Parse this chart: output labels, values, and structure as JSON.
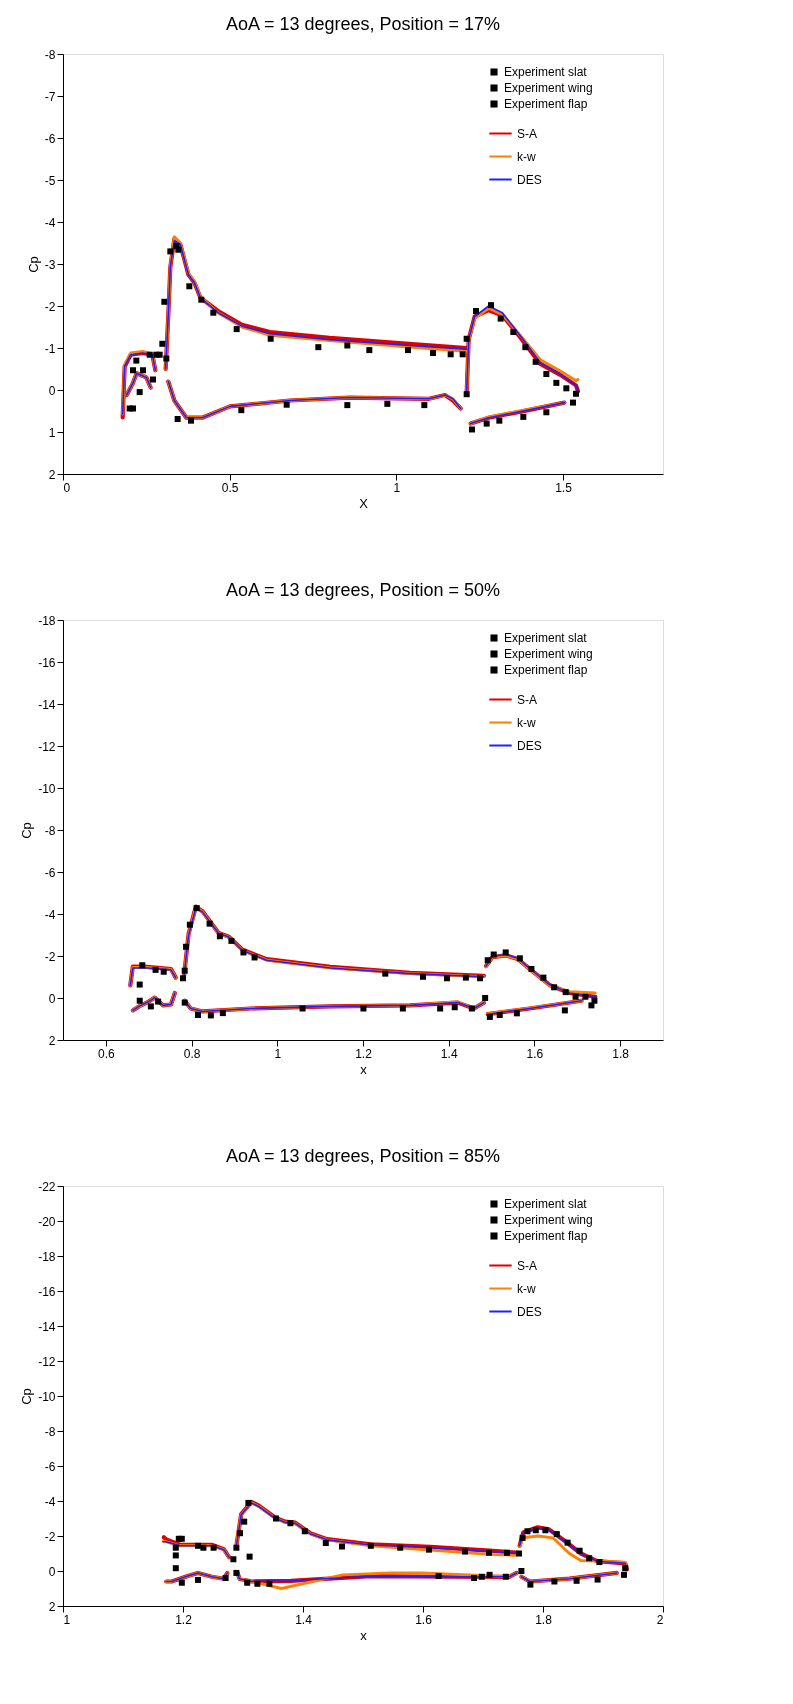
{
  "chart_data": [
    {
      "type": "line",
      "title": "AoA = 13 degrees, Position = 17%",
      "xlabel": "X",
      "ylabel": "Cp",
      "xlim": [
        0,
        1.8
      ],
      "xticks": [
        0,
        0.5,
        1,
        1.5
      ],
      "ylim": [
        2,
        -8
      ],
      "yticks": [
        2,
        1,
        0,
        -1,
        -2,
        -3,
        -4,
        -5,
        -6,
        -7,
        -8
      ],
      "grid": false,
      "legend": "top right",
      "line_style": "solid",
      "series": [
        {
          "name": "Experiment slat",
          "type": "scatter",
          "marker": "square",
          "color": "#000000",
          "x": [
            0.2,
            0.21,
            0.21,
            0.22,
            0.23,
            0.24,
            0.26,
            0.27,
            0.28,
            0.29
          ],
          "values": [
            0.44,
            0.44,
            -0.47,
            -0.7,
            0.05,
            -0.47,
            -0.84,
            -0.25,
            -0.84,
            -0.84
          ]
        },
        {
          "name": "Experiment wing",
          "type": "scatter",
          "marker": "square",
          "color": "#000000",
          "x": [
            0.298,
            0.304,
            0.31,
            0.322,
            0.34,
            0.346,
            0.379,
            0.415,
            0.451,
            0.521,
            0.623,
            0.766,
            0.853,
            0.919,
            1.035,
            1.11,
            1.163,
            1.199,
            0.344,
            0.384,
            0.535,
            0.671,
            0.853,
            0.973,
            1.084
          ],
          "values": [
            -1.1,
            -2.1,
            -0.75,
            -3.3,
            -3.43,
            -3.34,
            -2.47,
            -2.15,
            -1.84,
            -1.45,
            -1.22,
            -1.02,
            -1.06,
            -0.95,
            -0.95,
            -0.88,
            -0.85,
            -0.85,
            0.69,
            0.73,
            0.48,
            0.35,
            0.36,
            0.33,
            0.36
          ]
        },
        {
          "name": "Experiment flap",
          "type": "scatter",
          "marker": "square",
          "color": "#000000",
          "x": [
            1.211,
            1.211,
            1.239,
            1.284,
            1.313,
            1.351,
            1.387,
            1.418,
            1.45,
            1.48,
            1.51,
            1.539,
            1.53,
            1.45,
            1.381,
            1.309,
            1.271,
            1.227
          ],
          "values": [
            -1.22,
            0.1,
            -1.88,
            -2.02,
            -1.7,
            -1.38,
            -1.02,
            -0.67,
            -0.38,
            -0.17,
            -0.04,
            0.09,
            0.3,
            0.53,
            0.64,
            0.73,
            0.8,
            0.94
          ]
        },
        {
          "name": "S-A",
          "color": "#e00000",
          "x": [
            0.179,
            0.185,
            0.203,
            0.239,
            0.268,
            0.277
          ],
          "values": [
            0.65,
            -0.56,
            -0.84,
            -0.88,
            -0.84,
            -0.47
          ]
        },
        {
          "color": "#e00000",
          "x": [
            0.191,
            0.209,
            0.221,
            0.25,
            0.263
          ],
          "values": [
            0.12,
            -0.15,
            -0.4,
            -0.3,
            -0.06
          ]
        },
        {
          "color": "#e00000",
          "x": [
            0.308,
            0.316,
            0.322,
            0.334,
            0.352,
            0.376,
            0.394,
            0.412,
            0.465,
            0.537,
            0.621,
            0.8,
            1.038,
            1.211
          ],
          "values": [
            -0.5,
            -1.8,
            -2.93,
            -3.6,
            -3.47,
            -2.75,
            -2.56,
            -2.2,
            -1.88,
            -1.55,
            -1.38,
            -1.24,
            -1.1,
            -1.0
          ]
        },
        {
          "color": "#e00000",
          "x": [
            0.316,
            0.334,
            0.37,
            0.418,
            0.501,
            0.68,
            0.859,
            1.098,
            1.146,
            1.17,
            1.193
          ],
          "values": [
            -0.2,
            0.25,
            0.66,
            0.66,
            0.39,
            0.25,
            0.18,
            0.21,
            0.12,
            0.25,
            0.44
          ]
        },
        {
          "color": "#e00000",
          "x": [
            1.211,
            1.217,
            1.235,
            1.277,
            1.318,
            1.372,
            1.432,
            1.492,
            1.539,
            1.545
          ],
          "values": [
            0.07,
            -1.2,
            -1.75,
            -1.9,
            -1.78,
            -1.25,
            -0.62,
            -0.36,
            -0.11,
            0.03
          ]
        },
        {
          "color": "#e00000",
          "x": [
            1.223,
            1.277,
            1.396,
            1.504
          ],
          "values": [
            0.8,
            0.66,
            0.48,
            0.3
          ]
        },
        {
          "name": "k-w",
          "color": "#ff8000",
          "x": [
            0.179,
            0.185,
            0.203,
            0.239,
            0.268,
            0.277
          ],
          "values": [
            0.57,
            -0.6,
            -0.88,
            -0.92,
            -0.86,
            -0.47
          ]
        },
        {
          "color": "#ff8000",
          "x": [
            0.191,
            0.209,
            0.221,
            0.25,
            0.263
          ],
          "values": [
            0.12,
            -0.15,
            -0.4,
            -0.3,
            -0.06
          ]
        },
        {
          "color": "#ff8000",
          "x": [
            0.308,
            0.316,
            0.322,
            0.334,
            0.352,
            0.376,
            0.394,
            0.412,
            0.465,
            0.537,
            0.621,
            0.8,
            1.038,
            1.211
          ],
          "values": [
            -0.5,
            -1.8,
            -2.95,
            -3.65,
            -3.5,
            -2.78,
            -2.58,
            -2.22,
            -1.84,
            -1.5,
            -1.3,
            -1.18,
            -1.02,
            -0.92
          ]
        },
        {
          "color": "#ff8000",
          "x": [
            0.316,
            0.334,
            0.37,
            0.418,
            0.501,
            0.68,
            0.859,
            1.098,
            1.146,
            1.17,
            1.193
          ],
          "values": [
            -0.2,
            0.25,
            0.66,
            0.66,
            0.39,
            0.25,
            0.18,
            0.21,
            0.12,
            0.21,
            0.44
          ]
        },
        {
          "color": "#ff8000",
          "x": [
            1.211,
            1.217,
            1.235,
            1.277,
            1.318,
            1.372,
            1.432,
            1.492,
            1.539,
            1.545
          ],
          "values": [
            0.07,
            -1.18,
            -1.7,
            -1.95,
            -1.8,
            -1.3,
            -0.72,
            -0.45,
            -0.22,
            -0.25
          ]
        },
        {
          "color": "#ff8000",
          "x": [
            1.223,
            1.277,
            1.396,
            1.504
          ],
          "values": [
            0.8,
            0.64,
            0.46,
            0.3
          ]
        },
        {
          "name": "DES",
          "color": "#2020ff",
          "x": [
            0.179,
            0.185,
            0.203,
            0.239,
            0.268,
            0.277
          ],
          "values": [
            0.57,
            -0.56,
            -0.84,
            -0.88,
            -0.84,
            -0.47
          ]
        },
        {
          "color": "#2020ff",
          "x": [
            0.191,
            0.209,
            0.221,
            0.25,
            0.263
          ],
          "values": [
            0.12,
            -0.15,
            -0.4,
            -0.3,
            -0.06
          ]
        },
        {
          "color": "#2020ff",
          "x": [
            0.308,
            0.316,
            0.322,
            0.334,
            0.352,
            0.376,
            0.394,
            0.412,
            0.465,
            0.537,
            0.621,
            0.8,
            1.038,
            1.211
          ],
          "values": [
            -0.5,
            -1.8,
            -2.93,
            -3.55,
            -3.47,
            -2.75,
            -2.56,
            -2.2,
            -1.84,
            -1.52,
            -1.34,
            -1.2,
            -1.06,
            -0.97
          ]
        },
        {
          "color": "#2020ff",
          "x": [
            0.316,
            0.334,
            0.37,
            0.418,
            0.501,
            0.68,
            0.859,
            1.098,
            1.146,
            1.17,
            1.193
          ],
          "values": [
            -0.2,
            0.25,
            0.66,
            0.66,
            0.39,
            0.25,
            0.18,
            0.21,
            0.12,
            0.21,
            0.44
          ]
        },
        {
          "color": "#2020ff",
          "x": [
            1.211,
            1.217,
            1.235,
            1.277,
            1.318,
            1.372,
            1.432,
            1.492,
            1.539,
            1.545
          ],
          "values": [
            0.07,
            -1.2,
            -1.75,
            -2.0,
            -1.84,
            -1.29,
            -0.65,
            -0.38,
            -0.11,
            0.03
          ]
        },
        {
          "color": "#2020ff",
          "x": [
            1.223,
            1.277,
            1.396,
            1.504
          ],
          "values": [
            0.8,
            0.66,
            0.48,
            0.3
          ]
        }
      ]
    },
    {
      "type": "line",
      "title": "AoA = 13 degrees, Position = 50%",
      "xlabel": "x",
      "ylabel": "Cp",
      "xlim": [
        0.5,
        1.9
      ],
      "xticks": [
        0.6,
        0.8,
        1,
        1.2,
        1.4,
        1.6,
        1.8
      ],
      "ylim": [
        2,
        -18
      ],
      "yticks": [
        2,
        0,
        -2,
        -4,
        -6,
        -8,
        -10,
        -12,
        -14,
        -16,
        -18
      ],
      "grid": false,
      "legend": "top right",
      "line_style": "solid",
      "series": [
        {
          "name": "Experiment slat",
          "type": "scatter",
          "marker": "square",
          "color": "#000000",
          "x": [
            0.679,
            0.679,
            0.685,
            0.705,
            0.722,
            0.735,
            0.716
          ],
          "values": [
            -0.64,
            0.13,
            -1.56,
            0.4,
            0.17,
            -1.25,
            -1.34
          ]
        },
        {
          "name": "Experiment wing",
          "type": "scatter",
          "marker": "square",
          "color": "#000000",
          "x": [
            0.78,
            0.784,
            0.787,
            0.796,
            0.812,
            0.842,
            0.866,
            0.893,
            0.921,
            0.947,
            1.252,
            1.34,
            1.396,
            1.44,
            1.473,
            0.784,
            0.815,
            0.845,
            0.873,
            1.059,
            1.201,
            1.293,
            1.38,
            1.414,
            1.454
          ],
          "values": [
            -0.94,
            -1.3,
            -2.44,
            -3.49,
            -4.28,
            -3.54,
            -2.94,
            -2.72,
            -2.17,
            -1.93,
            -1.16,
            -1.01,
            -0.94,
            -0.97,
            -0.94,
            0.22,
            0.81,
            0.83,
            0.72,
            0.5,
            0.5,
            0.5,
            0.5,
            0.44,
            0.5
          ]
        },
        {
          "name": "Experiment flap",
          "type": "scatter",
          "marker": "square",
          "color": "#000000",
          "x": [
            1.485,
            1.491,
            1.505,
            1.533,
            1.566,
            1.593,
            1.621,
            1.646,
            1.673,
            1.696,
            1.719,
            1.74,
            1.733,
            1.671,
            1.559,
            1.519,
            1.496
          ],
          "values": [
            0,
            -1.8,
            -2.07,
            -2.17,
            -1.89,
            -1.38,
            -0.97,
            -0.51,
            -0.28,
            -0.06,
            -0.06,
            0.13,
            0.35,
            0.59,
            0.73,
            0.81,
            0.9
          ]
        },
        {
          "name": "S-A",
          "color": "#e00000",
          "x": [
            0.657,
            0.663,
            0.696,
            0.752,
            0.763
          ],
          "values": [
            -0.6,
            -1.5,
            -1.48,
            -1.38,
            -0.97
          ]
        },
        {
          "color": "#e00000",
          "x": [
            0.663,
            0.677,
            0.7,
            0.714,
            0.733,
            0.752,
            0.761
          ],
          "values": [
            0.59,
            0.4,
            0.17,
            -0.02,
            0.35,
            0.31,
            -0.24
          ]
        },
        {
          "color": "#e00000",
          "x": [
            0.782,
            0.793,
            0.81,
            0.826,
            0.863,
            0.887,
            0.919,
            0.975,
            1.124,
            1.31,
            1.482
          ],
          "values": [
            -0.97,
            -3.05,
            -4.35,
            -4.12,
            -3.1,
            -2.92,
            -2.3,
            -1.85,
            -1.48,
            -1.2,
            -1.05
          ]
        },
        {
          "color": "#e00000",
          "x": [
            0.784,
            0.798,
            0.826,
            0.938,
            1.124,
            1.31,
            1.421,
            1.459,
            1.482
          ],
          "values": [
            0.13,
            0.5,
            0.64,
            0.5,
            0.4,
            0.35,
            0.22,
            0.5,
            0.22
          ]
        },
        {
          "color": "#e00000",
          "x": [
            1.487,
            1.502,
            1.533,
            1.561,
            1.598,
            1.635,
            1.682,
            1.742
          ],
          "values": [
            -1.52,
            -1.95,
            -2.03,
            -1.86,
            -1.23,
            -0.62,
            -0.24,
            -0.06
          ]
        },
        {
          "color": "#e00000",
          "x": [
            1.491,
            1.589,
            1.71
          ],
          "values": [
            0.77,
            0.5,
            0.13
          ]
        },
        {
          "name": "k-w",
          "color": "#ff8000",
          "x": [
            0.657,
            0.663,
            0.696,
            0.752,
            0.763
          ],
          "values": [
            -0.6,
            -1.45,
            -1.45,
            -1.36,
            -0.97
          ]
        },
        {
          "color": "#ff8000",
          "x": [
            0.663,
            0.677,
            0.7,
            0.714,
            0.733,
            0.752,
            0.761
          ],
          "values": [
            0.59,
            0.4,
            0.17,
            -0.02,
            0.35,
            0.31,
            -0.24
          ]
        },
        {
          "color": "#ff8000",
          "x": [
            0.782,
            0.793,
            0.81,
            0.826,
            0.863,
            0.887,
            0.919,
            0.975,
            1.124,
            1.31,
            1.482
          ],
          "values": [
            -0.97,
            -3.02,
            -4.32,
            -4.1,
            -3.08,
            -2.9,
            -2.26,
            -1.8,
            -1.43,
            -1.16,
            -1.01
          ]
        },
        {
          "color": "#ff8000",
          "x": [
            0.784,
            0.798,
            0.826,
            0.938,
            1.124,
            1.31,
            1.421,
            1.459,
            1.482
          ],
          "values": [
            0.13,
            0.5,
            0.64,
            0.5,
            0.4,
            0.35,
            0.18,
            0.5,
            0.22
          ]
        },
        {
          "color": "#ff8000",
          "x": [
            1.487,
            1.502,
            1.533,
            1.561,
            1.598,
            1.635,
            1.682,
            1.742
          ],
          "values": [
            -1.5,
            -1.95,
            -2.02,
            -1.86,
            -1.22,
            -0.6,
            -0.3,
            -0.24
          ]
        },
        {
          "color": "#ff8000",
          "x": [
            1.491,
            1.589,
            1.71
          ],
          "values": [
            0.75,
            0.48,
            0.13
          ]
        },
        {
          "name": "DES",
          "color": "#2020ff",
          "x": [
            0.657,
            0.663,
            0.696,
            0.752,
            0.763
          ],
          "values": [
            -0.6,
            -1.43,
            -1.43,
            -1.34,
            -0.97
          ]
        },
        {
          "color": "#2020ff",
          "x": [
            0.663,
            0.677,
            0.7,
            0.714,
            0.733,
            0.752,
            0.761
          ],
          "values": [
            0.59,
            0.4,
            0.17,
            -0.02,
            0.35,
            0.31,
            -0.24
          ]
        },
        {
          "color": "#2020ff",
          "x": [
            0.782,
            0.793,
            0.81,
            0.826,
            0.863,
            0.887,
            0.919,
            0.975,
            1.124,
            1.31,
            1.482
          ],
          "values": [
            -0.97,
            -2.99,
            -4.28,
            -4.09,
            -3.08,
            -2.9,
            -2.26,
            -1.8,
            -1.43,
            -1.16,
            -1.01
          ]
        },
        {
          "color": "#2020ff",
          "x": [
            0.784,
            0.798,
            0.826,
            0.938,
            1.124,
            1.31,
            1.421,
            1.459,
            1.482
          ],
          "values": [
            0.13,
            0.5,
            0.64,
            0.5,
            0.4,
            0.35,
            0.22,
            0.5,
            0.22
          ]
        },
        {
          "color": "#2020ff",
          "x": [
            1.487,
            1.502,
            1.533,
            1.561,
            1.598,
            1.635,
            1.682,
            1.742
          ],
          "values": [
            -1.52,
            -1.98,
            -2.07,
            -1.89,
            -1.25,
            -0.64,
            -0.24,
            -0.06
          ]
        },
        {
          "color": "#2020ff",
          "x": [
            1.491,
            1.589,
            1.71
          ],
          "values": [
            0.77,
            0.5,
            0.13
          ]
        }
      ]
    },
    {
      "type": "line",
      "title": "AoA = 13 degrees, Position = 85%",
      "xlabel": "x",
      "ylabel": "Cp",
      "xlim": [
        1,
        2
      ],
      "xticks": [
        1,
        1.2,
        1.4,
        1.6,
        1.8,
        2
      ],
      "ylim": [
        2,
        -22
      ],
      "yticks": [
        2,
        0,
        -2,
        -4,
        -6,
        -8,
        -10,
        -12,
        -14,
        -16,
        -18,
        -20,
        -22
      ],
      "grid": false,
      "legend": "top right",
      "line_style": "solid",
      "series": [
        {
          "name": "Experiment slat",
          "type": "scatter",
          "marker": "square",
          "color": "#000000",
          "x": [
            1.193,
            1.198,
            1.188,
            1.188,
            1.188,
            1.198,
            1.225,
            1.225,
            1.234,
            1.251,
            1.271,
            1.284
          ],
          "values": [
            -1.84,
            -1.84,
            -0.89,
            -0.16,
            -1.33,
            0.67,
            0.51,
            -1.44,
            -1.33,
            -1.33,
            0.4,
            -0.67
          ]
        },
        {
          "name": "Experiment wing",
          "type": "scatter",
          "marker": "square",
          "color": "#000000",
          "x": [
            1.289,
            1.289,
            1.295,
            1.302,
            1.309,
            1.311,
            1.355,
            1.379,
            1.403,
            1.438,
            1.465,
            1.513,
            1.562,
            1.61,
            1.67,
            1.71,
            1.74,
            1.76,
            1.307,
            1.324,
            1.344,
            1.626,
            1.685,
            1.698,
            1.711,
            1.738
          ],
          "values": [
            0.11,
            -1.33,
            -2.16,
            -2.82,
            -3.89,
            -0.82,
            -3.0,
            -2.73,
            -2.27,
            -1.6,
            -1.4,
            -1.44,
            -1.33,
            -1.22,
            -1.11,
            -1.04,
            -1.04,
            -1.0,
            0.67,
            0.73,
            0.73,
            0.29,
            0.4,
            0.33,
            0.22,
            0.33
          ]
        },
        {
          "name": "Experiment flap",
          "type": "scatter",
          "marker": "square",
          "color": "#000000",
          "x": [
            1.764,
            1.766,
            1.774,
            1.788,
            1.804,
            1.823,
            1.841,
            1.861,
            1.877,
            1.894,
            1.937,
            1.935,
            1.891,
            1.856,
            1.819,
            1.779
          ],
          "values": [
            0,
            -1.89,
            -2.27,
            -2.33,
            -2.33,
            -2.11,
            -1.62,
            -1.16,
            -0.73,
            -0.51,
            -0.16,
            0.22,
            0.49,
            0.56,
            0.6,
            0.78
          ]
        },
        {
          "name": "S-A",
          "color": "#e00000",
          "x": [
            1.168,
            1.172,
            1.195,
            1.248,
            1.268,
            1.277
          ],
          "values": [
            -1.93,
            -1.8,
            -1.5,
            -1.5,
            -1.25,
            -0.78
          ]
        },
        {
          "color": "#e00000",
          "x": [
            1.172,
            1.181,
            1.208,
            1.225,
            1.248,
            1.268,
            1.274
          ],
          "values": [
            0.6,
            0.6,
            0.29,
            0.11,
            0.33,
            0.44,
            0.11
          ]
        },
        {
          "color": "#e00000",
          "x": [
            1.289,
            1.297,
            1.314,
            1.327,
            1.354,
            1.37,
            1.387,
            1.413,
            1.44,
            1.513,
            1.612,
            1.711,
            1.756
          ],
          "values": [
            -1.44,
            -3.25,
            -3.95,
            -3.72,
            -3.05,
            -2.82,
            -2.76,
            -2.15,
            -1.82,
            -1.53,
            -1.38,
            -1.16,
            -1.05
          ]
        },
        {
          "color": "#e00000",
          "x": [
            1.291,
            1.294,
            1.314,
            1.38,
            1.513,
            1.645,
            1.744,
            1.756
          ],
          "values": [
            0.11,
            0.44,
            0.6,
            0.56,
            0.29,
            0.33,
            0.33,
            0.11
          ]
        },
        {
          "color": "#e00000",
          "x": [
            1.761,
            1.767,
            1.791,
            1.81,
            1.837,
            1.863,
            1.89,
            1.937,
            1.94
          ],
          "values": [
            -1.44,
            -2.2,
            -2.5,
            -2.38,
            -1.7,
            -1.0,
            -0.56,
            -0.44,
            -0.11
          ]
        },
        {
          "color": "#e00000",
          "x": [
            1.764,
            1.778,
            1.844,
            1.923
          ],
          "values": [
            0.33,
            0.6,
            0.44,
            0.11
          ]
        },
        {
          "name": "k-w",
          "color": "#ff8000",
          "x": [
            1.167,
            1.172,
            1.195,
            1.248,
            1.268,
            1.277
          ],
          "values": [
            -1.7,
            -1.67,
            -1.44,
            -1.44,
            -1.22,
            -0.78
          ]
        },
        {
          "color": "#ff8000",
          "x": [
            1.172,
            1.181,
            1.208,
            1.225,
            1.248,
            1.268,
            1.274
          ],
          "values": [
            0.6,
            0.6,
            0.29,
            0.11,
            0.33,
            0.44,
            0.11
          ]
        },
        {
          "color": "#ff8000",
          "x": [
            1.289,
            1.297,
            1.314,
            1.327,
            1.354,
            1.37,
            1.387,
            1.413,
            1.44,
            1.513,
            1.612,
            1.711,
            1.756
          ],
          "values": [
            -1.44,
            -3.22,
            -3.89,
            -3.67,
            -3.0,
            -2.78,
            -2.73,
            -2.11,
            -1.78,
            -1.44,
            -1.2,
            -0.95,
            -0.9
          ]
        },
        {
          "color": "#ff8000",
          "x": [
            1.291,
            1.294,
            1.314,
            1.364,
            1.466,
            1.546,
            1.599,
            1.744,
            1.756
          ],
          "values": [
            0.11,
            0.44,
            0.6,
            1.0,
            0.22,
            0.11,
            0.11,
            0.33,
            0.11
          ]
        },
        {
          "color": "#ff8000",
          "x": [
            1.761,
            1.767,
            1.791,
            1.817,
            1.844,
            1.863,
            1.897,
            1.937,
            1.94
          ],
          "values": [
            -1.4,
            -1.9,
            -2.0,
            -1.89,
            -1.0,
            -0.6,
            -0.56,
            -0.5,
            -0.11
          ]
        },
        {
          "color": "#ff8000",
          "x": [
            1.764,
            1.778,
            1.844,
            1.923
          ],
          "values": [
            0.33,
            0.6,
            0.44,
            0.11
          ]
        },
        {
          "name": "DES",
          "color": "#2020ff",
          "x": [
            1.167,
            1.172,
            1.195,
            1.248,
            1.268,
            1.277
          ],
          "values": [
            -1.67,
            -1.67,
            -1.44,
            -1.44,
            -1.22,
            -0.78
          ]
        },
        {
          "color": "#2020ff",
          "x": [
            1.172,
            1.181,
            1.208,
            1.225,
            1.248,
            1.268,
            1.274
          ],
          "values": [
            0.6,
            0.6,
            0.29,
            0.11,
            0.33,
            0.44,
            0.11
          ]
        },
        {
          "color": "#2020ff",
          "x": [
            1.289,
            1.297,
            1.314,
            1.327,
            1.354,
            1.37,
            1.387,
            1.413,
            1.44,
            1.513,
            1.612,
            1.711,
            1.756
          ],
          "values": [
            -1.44,
            -3.22,
            -3.89,
            -3.67,
            -3.0,
            -2.78,
            -2.73,
            -2.11,
            -1.78,
            -1.49,
            -1.33,
            -1.11,
            -1.0
          ]
        },
        {
          "color": "#2020ff",
          "x": [
            1.291,
            1.294,
            1.314,
            1.38,
            1.513,
            1.645,
            1.744,
            1.756
          ],
          "values": [
            0.11,
            0.44,
            0.6,
            0.56,
            0.29,
            0.33,
            0.33,
            0.11
          ]
        },
        {
          "color": "#2020ff",
          "x": [
            1.761,
            1.767,
            1.791,
            1.81,
            1.837,
            1.863,
            1.89,
            1.937,
            1.94
          ],
          "values": [
            -1.44,
            -2.16,
            -2.44,
            -2.33,
            -1.67,
            -1.0,
            -0.56,
            -0.44,
            -0.11
          ]
        },
        {
          "color": "#2020ff",
          "x": [
            1.764,
            1.778,
            1.844,
            1.923
          ],
          "values": [
            0.33,
            0.6,
            0.44,
            0.11
          ]
        }
      ]
    }
  ]
}
